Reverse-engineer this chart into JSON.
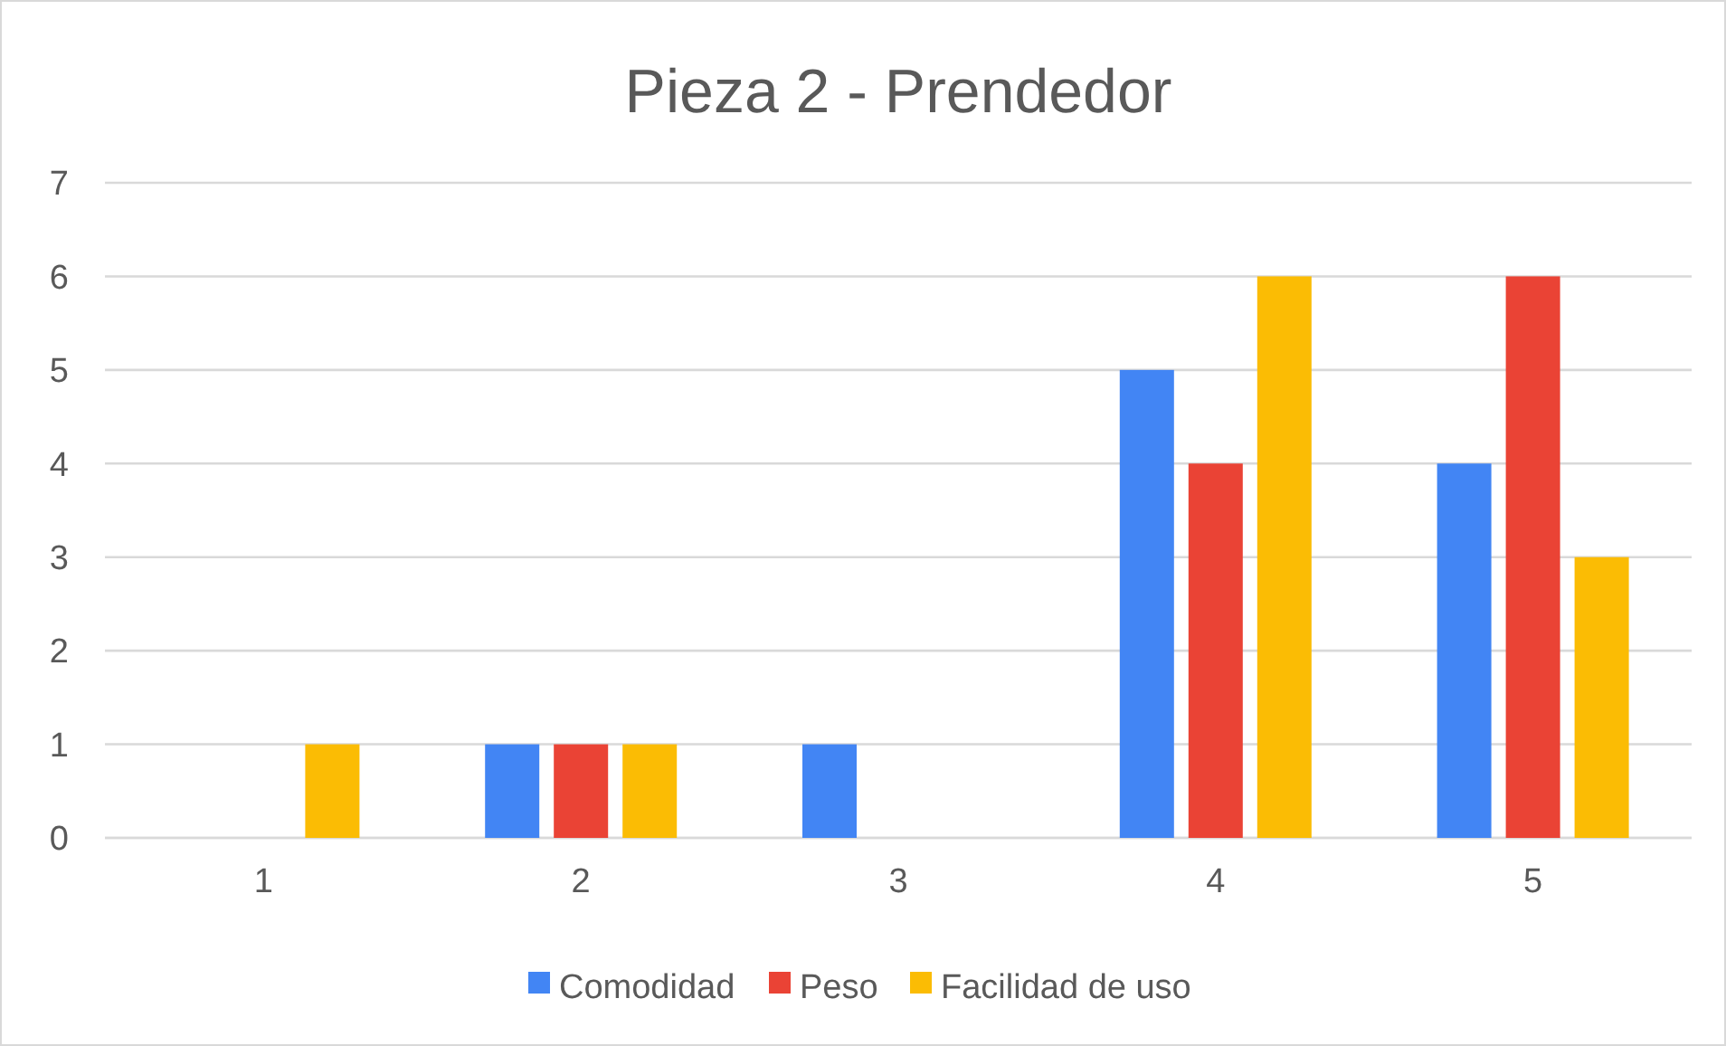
{
  "chart_data": {
    "type": "bar",
    "title": "Pieza 2 - Prendedor",
    "categories": [
      "1",
      "2",
      "3",
      "4",
      "5"
    ],
    "series": [
      {
        "name": "Comodidad",
        "color": "#4285f4",
        "values": [
          0,
          1,
          1,
          5,
          4
        ]
      },
      {
        "name": "Peso",
        "color": "#ea4335",
        "values": [
          0,
          1,
          0,
          4,
          6
        ]
      },
      {
        "name": "Facilidad de uso",
        "color": "#fbbc04",
        "values": [
          1,
          1,
          0,
          6,
          3
        ]
      }
    ],
    "ylim": [
      0,
      7
    ],
    "yticks": [
      0,
      1,
      2,
      3,
      4,
      5,
      6,
      7
    ],
    "grid": "y",
    "legend": "bottom"
  }
}
